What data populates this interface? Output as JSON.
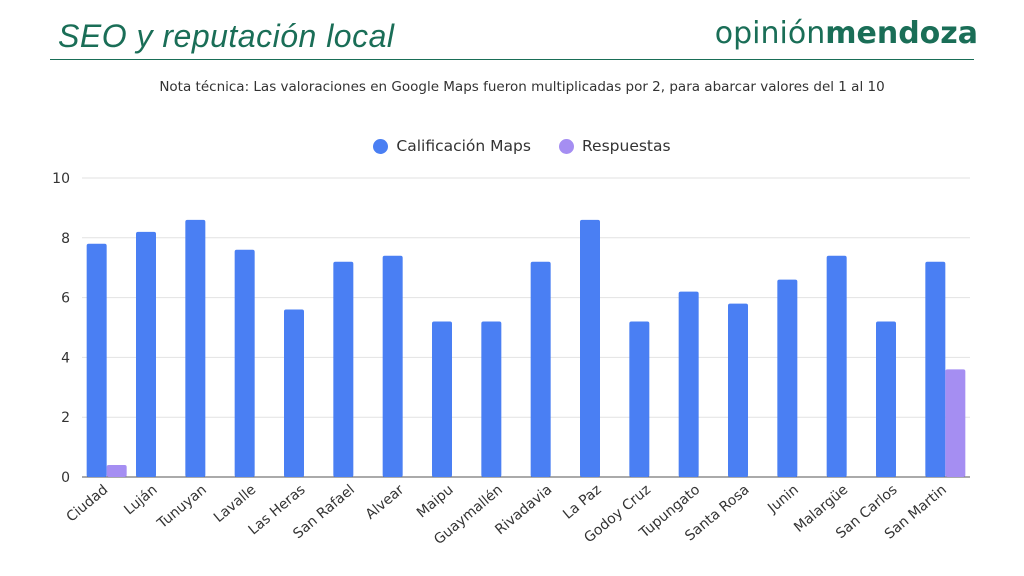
{
  "header": {
    "title": "SEO y reputación local",
    "brand_part1": "opinión",
    "brand_part2": "mendoza"
  },
  "note": "Nota técnica: Las valoraciones en Google Maps fueron multiplicadas por 2, para abarcar valores del 1 al 10",
  "colors": {
    "maps": "#4a7ff3",
    "respuestas": "#a58ef2",
    "brand": "#1a6e57"
  },
  "chart_data": {
    "type": "bar",
    "title": "",
    "xlabel": "",
    "ylabel": "",
    "ylim": [
      0,
      10
    ],
    "yticks": [
      0,
      2,
      4,
      6,
      8,
      10
    ],
    "grid": true,
    "legend_position": "top-center",
    "categories": [
      "Ciudad",
      "Luján",
      "Tunuyan",
      "Lavalle",
      "Las Heras",
      "San Rafael",
      "Alvear",
      "Maipu",
      "Guaymallén",
      "Rivadavia",
      "La Paz",
      "Godoy Cruz",
      "Tupungato",
      "Santa Rosa",
      "Junin",
      "Malargüe",
      "San Carlos",
      "San Martin"
    ],
    "series": [
      {
        "name": "Calificación Maps",
        "color": "#4a7ff3",
        "values": [
          7.8,
          8.2,
          8.6,
          7.6,
          5.6,
          7.2,
          7.4,
          5.2,
          5.2,
          7.2,
          8.6,
          5.2,
          6.2,
          5.8,
          6.6,
          7.4,
          5.2,
          7.2
        ]
      },
      {
        "name": "Respuestas",
        "color": "#a58ef2",
        "values": [
          0.4,
          0,
          0,
          0,
          0,
          0,
          0,
          0,
          0,
          0,
          0,
          0,
          0,
          0,
          0,
          0,
          0,
          3.6
        ]
      }
    ]
  }
}
